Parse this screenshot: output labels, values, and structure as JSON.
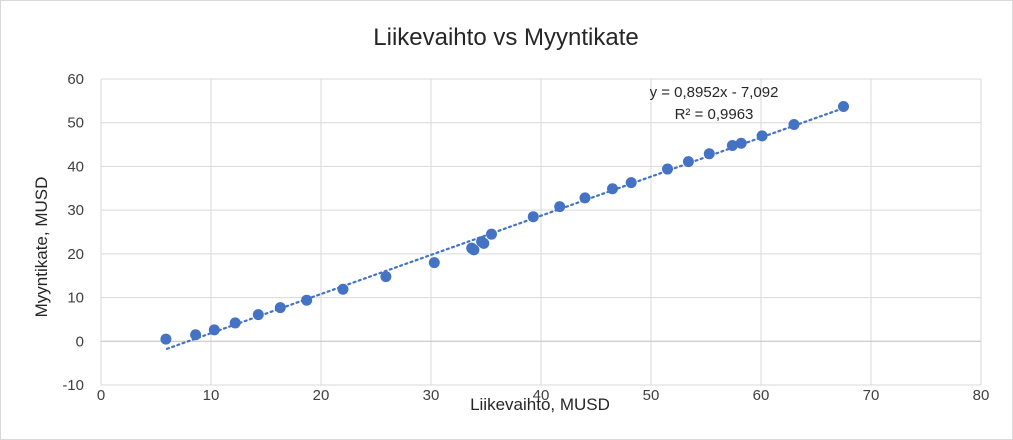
{
  "chart_data": {
    "type": "scatter",
    "title": "Liikevaihto vs Myyntikate",
    "xlabel": "Liikevaihto, MUSD",
    "ylabel": "Myyntikate, MUSD",
    "xlim": [
      0,
      80
    ],
    "ylim": [
      -10,
      60
    ],
    "xticks": [
      0,
      10,
      20,
      30,
      40,
      50,
      60,
      70,
      80
    ],
    "yticks": [
      -10,
      0,
      10,
      20,
      30,
      40,
      50,
      60
    ],
    "grid": true,
    "legend": "none",
    "marker_color": "#4472c4",
    "trendline": {
      "type": "linear",
      "slope": 0.8952,
      "intercept": -7.092,
      "x_range": [
        6,
        67.5
      ],
      "equation_label": "y = 0,8952x - 7,092",
      "r2_label": "R² = 0,9963",
      "style": "dotted"
    },
    "points": [
      {
        "x": 5.9,
        "y": 0.5
      },
      {
        "x": 8.6,
        "y": 1.5
      },
      {
        "x": 10.3,
        "y": 2.6
      },
      {
        "x": 12.2,
        "y": 4.2
      },
      {
        "x": 14.3,
        "y": 6.1
      },
      {
        "x": 16.3,
        "y": 7.7
      },
      {
        "x": 18.7,
        "y": 9.4
      },
      {
        "x": 22.0,
        "y": 11.9
      },
      {
        "x": 25.9,
        "y": 14.8
      },
      {
        "x": 30.3,
        "y": 18.0
      },
      {
        "x": 33.7,
        "y": 21.3
      },
      {
        "x": 33.9,
        "y": 20.9
      },
      {
        "x": 34.6,
        "y": 22.8
      },
      {
        "x": 34.8,
        "y": 22.4
      },
      {
        "x": 35.5,
        "y": 24.5
      },
      {
        "x": 39.3,
        "y": 28.5
      },
      {
        "x": 41.7,
        "y": 30.8
      },
      {
        "x": 44.0,
        "y": 32.8
      },
      {
        "x": 46.5,
        "y": 34.9
      },
      {
        "x": 48.2,
        "y": 36.3
      },
      {
        "x": 51.5,
        "y": 39.4
      },
      {
        "x": 53.4,
        "y": 41.1
      },
      {
        "x": 55.3,
        "y": 42.9
      },
      {
        "x": 57.4,
        "y": 44.8
      },
      {
        "x": 58.2,
        "y": 45.3
      },
      {
        "x": 60.1,
        "y": 47.0
      },
      {
        "x": 63.0,
        "y": 49.6
      },
      {
        "x": 67.5,
        "y": 53.7
      }
    ]
  }
}
